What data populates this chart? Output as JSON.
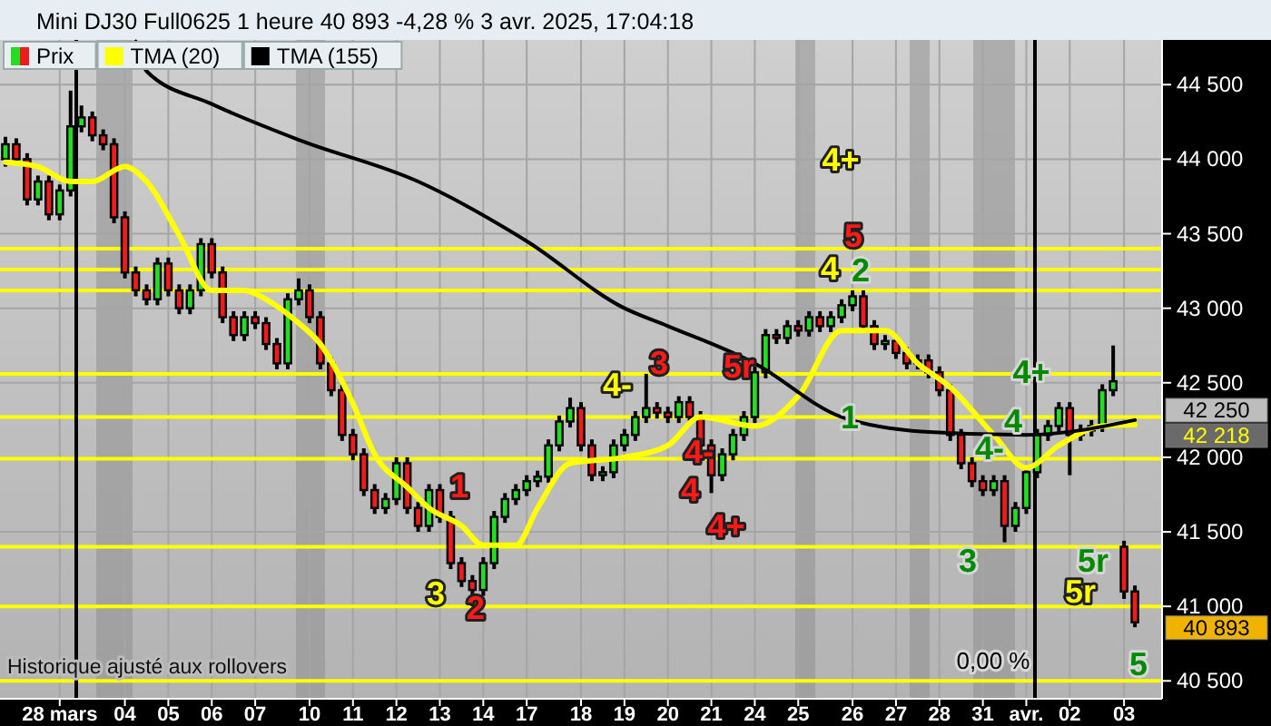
{
  "chart_data": {
    "type": "candlestick",
    "title": "Mini DJ30 Full0625 1 heure 40 893 -4,28 % 3 avr. 2025, 17:04:18",
    "categories": [
      null,
      null,
      null,
      null,
      null,
      "28 mars",
      null,
      null,
      null,
      null,
      null,
      "04",
      null,
      null,
      null,
      "05",
      null,
      null,
      null,
      "06",
      null,
      null,
      null,
      "07",
      null,
      null,
      null,
      null,
      "10",
      null,
      null,
      null,
      "11",
      null,
      null,
      null,
      "12",
      null,
      null,
      null,
      "13",
      null,
      null,
      null,
      "14",
      null,
      null,
      null,
      "17",
      null,
      null,
      null,
      null,
      "18",
      null,
      null,
      null,
      "19",
      null,
      null,
      null,
      "20",
      null,
      null,
      null,
      "21",
      null,
      null,
      null,
      "24",
      null,
      null,
      null,
      "25",
      null,
      null,
      null,
      null,
      "26",
      null,
      null,
      null,
      "27",
      null,
      null,
      null,
      "28",
      null,
      null,
      null,
      "31",
      null,
      null,
      null,
      "avr.",
      null,
      null,
      null,
      "02",
      null,
      null,
      null,
      null,
      "03",
      null
    ],
    "ylim": [
      40380,
      44800
    ],
    "yticks": [
      {
        "value": 40500,
        "label": "40 500"
      },
      {
        "value": 41000,
        "label": "41 000"
      },
      {
        "value": 41500,
        "label": "41 500"
      },
      {
        "value": 42000,
        "label": "42 000"
      },
      {
        "value": 42500,
        "label": "42 500"
      },
      {
        "value": 43000,
        "label": "43 000"
      },
      {
        "value": 43500,
        "label": "43 500"
      },
      {
        "value": 44000,
        "label": "44 000"
      },
      {
        "value": 44500,
        "label": "44 500"
      }
    ],
    "grid": true,
    "legend": "top left",
    "series": [
      {
        "name": "Prix",
        "value_labels": [
          null,
          null,
          null,
          null,
          null,
          null,
          null,
          null,
          null,
          null,
          null,
          null,
          null,
          null,
          null,
          null,
          null,
          null,
          null,
          null,
          null,
          null,
          null,
          null,
          null,
          null,
          null,
          null,
          null,
          null,
          null,
          null,
          null,
          null,
          null,
          null,
          null,
          null,
          null,
          null,
          null,
          null,
          null,
          null,
          null,
          null,
          null,
          null,
          null,
          null,
          null,
          null,
          null,
          null,
          null,
          null,
          null,
          null,
          null,
          null,
          null,
          null,
          null,
          null,
          null,
          null,
          null,
          null,
          null,
          null,
          null,
          null,
          null,
          null,
          null,
          null,
          null,
          null,
          null,
          null,
          null,
          null,
          null,
          null,
          null,
          null,
          null,
          null,
          null,
          null,
          null,
          null,
          null,
          null,
          null,
          null,
          null,
          null,
          null,
          null,
          null,
          null,
          null,
          null,
          "40 893"
        ],
        "ohlc": [
          [
            44000,
            44150,
            43950,
            44100
          ],
          [
            44100,
            44140,
            43960,
            44000
          ],
          [
            44000,
            44040,
            43690,
            43730
          ],
          [
            43730,
            43890,
            43690,
            43850
          ],
          [
            43850,
            43890,
            43590,
            43630
          ],
          [
            43630,
            43830,
            43590,
            43790
          ],
          [
            43790,
            44460,
            43750,
            44220
          ],
          [
            44220,
            44360,
            44180,
            44280
          ],
          [
            44280,
            44320,
            44120,
            44160
          ],
          [
            44160,
            44200,
            44060,
            44100
          ],
          [
            44100,
            44140,
            43570,
            43610
          ],
          [
            43610,
            43650,
            43200,
            43240
          ],
          [
            43240,
            43280,
            43080,
            43120
          ],
          [
            43120,
            43160,
            43020,
            43060
          ],
          [
            43060,
            43340,
            43020,
            43300
          ],
          [
            43300,
            43340,
            43080,
            43120
          ],
          [
            43120,
            43160,
            42960,
            43000
          ],
          [
            43000,
            43160,
            42960,
            43120
          ],
          [
            43120,
            43470,
            43080,
            43430
          ],
          [
            43430,
            43470,
            43200,
            43240
          ],
          [
            43240,
            43280,
            42900,
            42940
          ],
          [
            42940,
            42980,
            42780,
            42820
          ],
          [
            42820,
            42980,
            42780,
            42940
          ],
          [
            42940,
            42980,
            42860,
            42900
          ],
          [
            42900,
            42940,
            42720,
            42760
          ],
          [
            42760,
            42800,
            42590,
            42630
          ],
          [
            42630,
            43100,
            42590,
            43060
          ],
          [
            43060,
            43200,
            43020,
            43120
          ],
          [
            43120,
            43160,
            42900,
            42940
          ],
          [
            42940,
            42980,
            42590,
            42630
          ],
          [
            42630,
            42670,
            42410,
            42450
          ],
          [
            42450,
            42490,
            42110,
            42150
          ],
          [
            42150,
            42190,
            41980,
            42020
          ],
          [
            42020,
            42060,
            41740,
            41780
          ],
          [
            41780,
            41820,
            41620,
            41660
          ],
          [
            41660,
            41760,
            41620,
            41720
          ],
          [
            41720,
            42000,
            41680,
            41960
          ],
          [
            41960,
            42000,
            41620,
            41660
          ],
          [
            41660,
            41700,
            41500,
            41540
          ],
          [
            41540,
            41820,
            41500,
            41780
          ],
          [
            41780,
            41820,
            41560,
            41600
          ],
          [
            41600,
            41640,
            41250,
            41290
          ],
          [
            41290,
            41330,
            41130,
            41170
          ],
          [
            41170,
            41210,
            41000,
            41110
          ],
          [
            41110,
            41330,
            41070,
            41290
          ],
          [
            41290,
            41640,
            41250,
            41600
          ],
          [
            41600,
            41760,
            41560,
            41720
          ],
          [
            41720,
            41820,
            41680,
            41780
          ],
          [
            41780,
            41880,
            41740,
            41840
          ],
          [
            41840,
            41910,
            41800,
            41870
          ],
          [
            41870,
            42120,
            41830,
            42080
          ],
          [
            42080,
            42280,
            42040,
            42240
          ],
          [
            42240,
            42400,
            42200,
            42330
          ],
          [
            42330,
            42370,
            42040,
            42080
          ],
          [
            42080,
            42120,
            41840,
            41880
          ],
          [
            41880,
            41940,
            41840,
            41900
          ],
          [
            41900,
            42120,
            41860,
            42080
          ],
          [
            42080,
            42190,
            42040,
            42150
          ],
          [
            42150,
            42310,
            42110,
            42270
          ],
          [
            42270,
            42560,
            42230,
            42330
          ],
          [
            42330,
            42370,
            42260,
            42300
          ],
          [
            42300,
            42340,
            42230,
            42270
          ],
          [
            42270,
            42410,
            42230,
            42370
          ],
          [
            42370,
            42410,
            42230,
            42270
          ],
          [
            42270,
            42310,
            42040,
            42080
          ],
          [
            42080,
            42120,
            41760,
            41880
          ],
          [
            41880,
            42060,
            41840,
            42020
          ],
          [
            42020,
            42190,
            41980,
            42150
          ],
          [
            42150,
            42310,
            42110,
            42270
          ],
          [
            42270,
            42610,
            42230,
            42570
          ],
          [
            42570,
            42860,
            42530,
            42820
          ],
          [
            42820,
            42860,
            42760,
            42800
          ],
          [
            42800,
            42920,
            42760,
            42880
          ],
          [
            42880,
            42920,
            42810,
            42850
          ],
          [
            42850,
            42980,
            42810,
            42940
          ],
          [
            42940,
            42980,
            42840,
            42880
          ],
          [
            42880,
            42980,
            42840,
            42940
          ],
          [
            42940,
            43060,
            42900,
            43020
          ],
          [
            43020,
            43120,
            42980,
            43080
          ],
          [
            43080,
            43120,
            42840,
            42880
          ],
          [
            42880,
            42920,
            42720,
            42760
          ],
          [
            42760,
            42820,
            42720,
            42780
          ],
          [
            42780,
            42820,
            42660,
            42700
          ],
          [
            42700,
            42740,
            42590,
            42630
          ],
          [
            42630,
            42690,
            42590,
            42650
          ],
          [
            42650,
            42690,
            42530,
            42570
          ],
          [
            42570,
            42610,
            42410,
            42450
          ],
          [
            42450,
            42490,
            42110,
            42150
          ],
          [
            42150,
            42190,
            41920,
            41960
          ],
          [
            41960,
            42000,
            41800,
            41840
          ],
          [
            41840,
            41880,
            41740,
            41780
          ],
          [
            41780,
            41880,
            41740,
            41840
          ],
          [
            41840,
            41880,
            41430,
            41540
          ],
          [
            41540,
            41700,
            41500,
            41660
          ],
          [
            41660,
            41940,
            41620,
            41900
          ],
          [
            41900,
            42190,
            41860,
            42150
          ],
          [
            42150,
            42250,
            42110,
            42210
          ],
          [
            42210,
            42370,
            42170,
            42330
          ],
          [
            42330,
            42370,
            41880,
            42150
          ],
          [
            42150,
            42220,
            42110,
            42180
          ],
          [
            42180,
            42250,
            42140,
            42210
          ],
          [
            42210,
            42490,
            42170,
            42450
          ],
          [
            42450,
            42750,
            42410,
            42510
          ],
          [
            41400,
            41440,
            41050,
            41100
          ],
          [
            41100,
            41140,
            40860,
            40893
          ]
        ]
      },
      {
        "name": "TMA (20)",
        "type": "line",
        "color": "#ffff00",
        "values": [
          43980,
          null,
          null,
          43950,
          null,
          null,
          43850,
          null,
          43850,
          null,
          null,
          43950,
          null,
          43850,
          null,
          null,
          43490,
          null,
          null,
          43120,
          null,
          null,
          43120,
          null,
          43060,
          null,
          null,
          42900,
          null,
          42760,
          null,
          null,
          42360,
          null,
          42020,
          null,
          null,
          41800,
          null,
          41660,
          null,
          null,
          41540,
          null,
          41410,
          null,
          null,
          41410,
          null,
          41660,
          null,
          null,
          41960,
          null,
          null,
          null,
          null,
          42000,
          null,
          null,
          null,
          42080,
          null,
          null,
          42270,
          null,
          null,
          null,
          null,
          42210,
          null,
          null,
          null,
          42410,
          null,
          null,
          null,
          42850,
          null,
          null,
          null,
          42850,
          null,
          null,
          42630,
          null,
          null,
          42470,
          null,
          null,
          null,
          42150,
          null,
          null,
          41930,
          null,
          null,
          42080,
          null,
          null,
          null,
          42210,
          null,
          null,
          42218
        ],
        "value_labels": [
          null,
          null,
          null,
          null,
          null,
          null,
          null,
          null,
          null,
          null,
          null,
          null,
          null,
          null,
          null,
          null,
          null,
          null,
          null,
          null,
          null,
          null,
          null,
          null,
          null,
          null,
          null,
          null,
          null,
          null,
          null,
          null,
          null,
          null,
          null,
          null,
          null,
          null,
          null,
          null,
          null,
          null,
          null,
          null,
          null,
          null,
          null,
          null,
          null,
          null,
          null,
          null,
          null,
          null,
          null,
          null,
          null,
          null,
          null,
          null,
          null,
          null,
          null,
          null,
          null,
          null,
          null,
          null,
          null,
          null,
          null,
          null,
          null,
          null,
          null,
          null,
          null,
          null,
          null,
          null,
          null,
          null,
          null,
          null,
          null,
          null,
          null,
          null,
          null,
          null,
          null,
          null,
          null,
          null,
          null,
          null,
          null,
          null,
          null,
          null,
          null,
          null,
          null,
          null,
          null
        ]
      },
      {
        "name": "TMA (155)",
        "type": "line",
        "color": "#000000",
        "values": [
          null,
          null,
          null,
          null,
          null,
          null,
          null,
          null,
          null,
          null,
          null,
          null,
          44790,
          44590,
          null,
          null,
          null,
          null,
          null,
          44370,
          null,
          null,
          null,
          null,
          null,
          null,
          null,
          44130,
          null,
          null,
          null,
          null,
          null,
          null,
          null,
          null,
          null,
          null,
          43850,
          null,
          null,
          null,
          null,
          null,
          null,
          null,
          null,
          null,
          43450,
          null,
          null,
          null,
          null,
          null,
          null,
          null,
          null,
          43000,
          null,
          null,
          null,
          42880,
          null,
          null,
          null,
          null,
          null,
          null,
          null,
          42630,
          null,
          null,
          null,
          null,
          null,
          null,
          null,
          42270,
          null,
          null,
          null,
          null,
          null,
          null,
          null,
          42170,
          null,
          null,
          null,
          null,
          null,
          null,
          null,
          null,
          42150,
          null,
          null,
          null,
          null,
          null,
          null,
          null,
          null,
          null,
          42250
        ],
        "value_labels": [
          null,
          null,
          null,
          null,
          null,
          null,
          null,
          null,
          null,
          null,
          null,
          null,
          null,
          null,
          null,
          null,
          null,
          null,
          null,
          null,
          null,
          null,
          null,
          null,
          null,
          null,
          null,
          null,
          null,
          null,
          null,
          null,
          null,
          null,
          null,
          null,
          null,
          null,
          null,
          null,
          null,
          null,
          null,
          null,
          null,
          null,
          null,
          null,
          null,
          null,
          null,
          null,
          null,
          null,
          null,
          null,
          null,
          null,
          null,
          null,
          null,
          null,
          null,
          null,
          null,
          null,
          null,
          null,
          null,
          null,
          null,
          null,
          null,
          null,
          null,
          null,
          null,
          null,
          null,
          null,
          null,
          null,
          null,
          null,
          null,
          null,
          null,
          null,
          null,
          null,
          null,
          null,
          null,
          null,
          null,
          null,
          null,
          null,
          null,
          null,
          null,
          null,
          null,
          null,
          null
        ]
      }
    ],
    "ref_lines": [
      {
        "axis": "y",
        "value": 43400,
        "color": "#ffff00"
      },
      {
        "axis": "y",
        "value": 43260,
        "color": "#ffff00"
      },
      {
        "axis": "y",
        "value": 43120,
        "color": "#ffff00"
      },
      {
        "axis": "y",
        "value": 42560,
        "color": "#ffff00"
      },
      {
        "axis": "y",
        "value": 42270,
        "color": "#ffff00"
      },
      {
        "axis": "y",
        "value": 41990,
        "color": "#ffff00"
      },
      {
        "axis": "y",
        "value": 41400,
        "color": "#ffff00"
      },
      {
        "axis": "y",
        "value": 41000,
        "color": "#ffff00"
      },
      {
        "axis": "y",
        "value": 40500,
        "color": "#ffff00"
      }
    ],
    "annotations": [
      "Historique ajusté aux rollovers",
      "4+",
      "5",
      "4",
      "2",
      "4-",
      "3",
      "5r",
      "1",
      "3",
      "2",
      "4-",
      "4",
      "4+",
      "1",
      "4+",
      "4",
      "4-",
      "3",
      "5r",
      "5r",
      "5",
      "0,00 %",
      "42 250",
      "42 218"
    ]
  }
}
